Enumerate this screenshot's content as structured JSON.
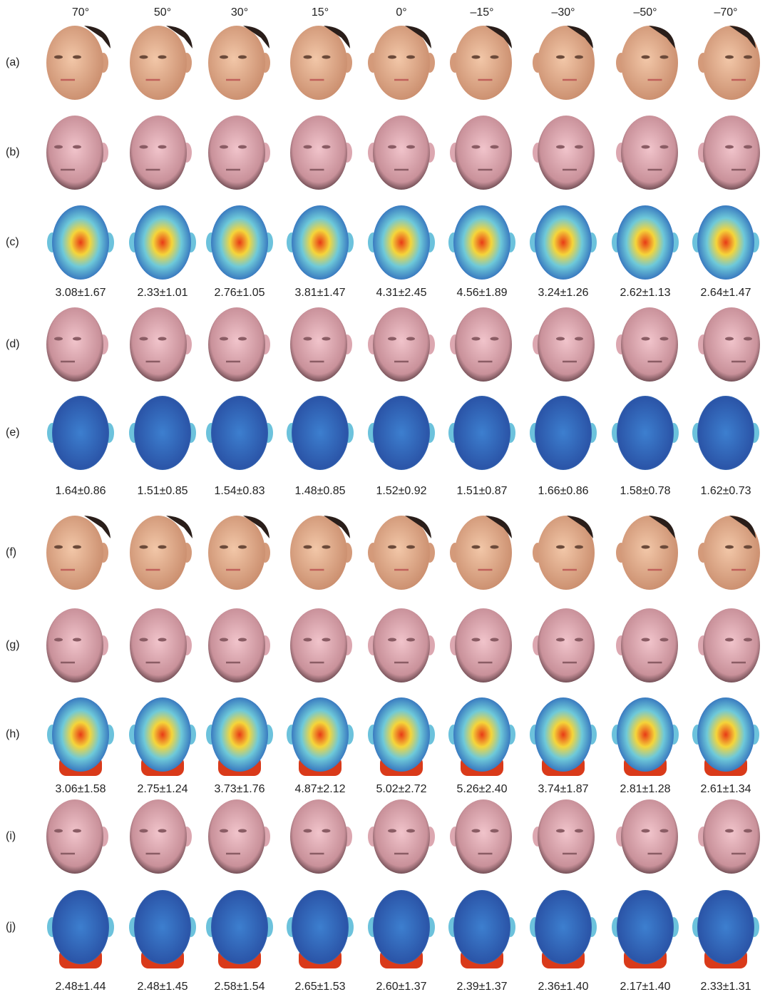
{
  "column_headers": [
    "70°",
    "50°",
    "30°",
    "15°",
    "0°",
    "–15°",
    "–30°",
    "–50°",
    "–70°"
  ],
  "row_labels": [
    "(a)",
    "(b)",
    "(c)",
    "(d)",
    "(e)",
    "(f)",
    "(g)",
    "(h)",
    "(i)",
    "(j)"
  ],
  "error_lines": [
    [
      "3.08±1.67",
      "2.33±1.01",
      "2.76±1.05",
      "3.81±1.47",
      "4.31±2.45",
      "4.56±1.89",
      "3.24±1.26",
      "2.62±1.13",
      "2.64±1.47"
    ],
    [
      "1.64±0.86",
      "1.51±0.85",
      "1.54±0.83",
      "1.48±0.85",
      "1.52±0.92",
      "1.51±0.87",
      "1.66±0.86",
      "1.58±0.78",
      "1.62±0.73"
    ],
    [
      "3.06±1.58",
      "2.75±1.24",
      "3.73±1.76",
      "4.87±2.12",
      "5.02±2.72",
      "5.26±2.40",
      "3.74±1.87",
      "2.81±1.28",
      "2.61±1.34"
    ],
    [
      "2.48±1.44",
      "2.48±1.45",
      "2.58±1.54",
      "2.65±1.53",
      "2.60±1.37",
      "2.39±1.37",
      "2.36±1.40",
      "2.17±1.40",
      "2.33±1.31"
    ]
  ]
}
